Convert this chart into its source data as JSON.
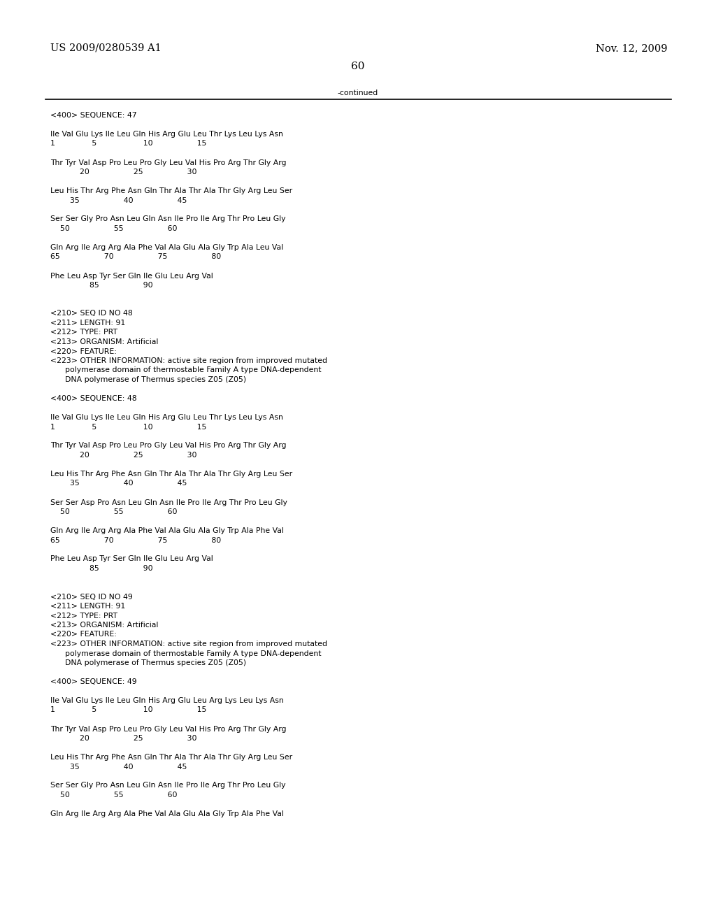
{
  "header_left": "US 2009/0280539 A1",
  "header_right": "Nov. 12, 2009",
  "page_number": "60",
  "continued_text": "-continued",
  "background_color": "#ffffff",
  "text_color": "#000000",
  "font_size_header": 10.5,
  "font_size_body": 7.8,
  "font_size_page": 11,
  "lines": [
    "<400> SEQUENCE: 47",
    "",
    "Ile Val Glu Lys Ile Leu Gln His Arg Glu Leu Thr Lys Leu Lys Asn",
    "1               5                   10                  15",
    "",
    "Thr Tyr Val Asp Pro Leu Pro Gly Leu Val His Pro Arg Thr Gly Arg",
    "            20                  25                  30",
    "",
    "Leu His Thr Arg Phe Asn Gln Thr Ala Thr Ala Thr Gly Arg Leu Ser",
    "        35                  40                  45",
    "",
    "Ser Ser Gly Pro Asn Leu Gln Asn Ile Pro Ile Arg Thr Pro Leu Gly",
    "    50                  55                  60",
    "",
    "Gln Arg Ile Arg Arg Ala Phe Val Ala Glu Ala Gly Trp Ala Leu Val",
    "65                  70                  75                  80",
    "",
    "Phe Leu Asp Tyr Ser Gln Ile Glu Leu Arg Val",
    "                85                  90",
    "",
    "",
    "<210> SEQ ID NO 48",
    "<211> LENGTH: 91",
    "<212> TYPE: PRT",
    "<213> ORGANISM: Artificial",
    "<220> FEATURE:",
    "<223> OTHER INFORMATION: active site region from improved mutated",
    "      polymerase domain of thermostable Family A type DNA-dependent",
    "      DNA polymerase of Thermus species Z05 (Z05)",
    "",
    "<400> SEQUENCE: 48",
    "",
    "Ile Val Glu Lys Ile Leu Gln His Arg Glu Leu Thr Lys Leu Lys Asn",
    "1               5                   10                  15",
    "",
    "Thr Tyr Val Asp Pro Leu Pro Gly Leu Val His Pro Arg Thr Gly Arg",
    "            20                  25                  30",
    "",
    "Leu His Thr Arg Phe Asn Gln Thr Ala Thr Ala Thr Gly Arg Leu Ser",
    "        35                  40                  45",
    "",
    "Ser Ser Asp Pro Asn Leu Gln Asn Ile Pro Ile Arg Thr Pro Leu Gly",
    "    50                  55                  60",
    "",
    "Gln Arg Ile Arg Arg Ala Phe Val Ala Glu Ala Gly Trp Ala Phe Val",
    "65                  70                  75                  80",
    "",
    "Phe Leu Asp Tyr Ser Gln Ile Glu Leu Arg Val",
    "                85                  90",
    "",
    "",
    "<210> SEQ ID NO 49",
    "<211> LENGTH: 91",
    "<212> TYPE: PRT",
    "<213> ORGANISM: Artificial",
    "<220> FEATURE:",
    "<223> OTHER INFORMATION: active site region from improved mutated",
    "      polymerase domain of thermostable Family A type DNA-dependent",
    "      DNA polymerase of Thermus species Z05 (Z05)",
    "",
    "<400> SEQUENCE: 49",
    "",
    "Ile Val Glu Lys Ile Leu Gln His Arg Glu Leu Arg Lys Leu Lys Asn",
    "1               5                   10                  15",
    "",
    "Thr Tyr Val Asp Pro Leu Pro Gly Leu Val His Pro Arg Thr Gly Arg",
    "            20                  25                  30",
    "",
    "Leu His Thr Arg Phe Asn Gln Thr Ala Thr Ala Thr Gly Arg Leu Ser",
    "        35                  40                  45",
    "",
    "Ser Ser Gly Pro Asn Leu Gln Asn Ile Pro Ile Arg Thr Pro Leu Gly",
    "    50                  55                  60",
    "",
    "Gln Arg Ile Arg Arg Ala Phe Val Ala Glu Ala Gly Trp Ala Phe Val"
  ]
}
